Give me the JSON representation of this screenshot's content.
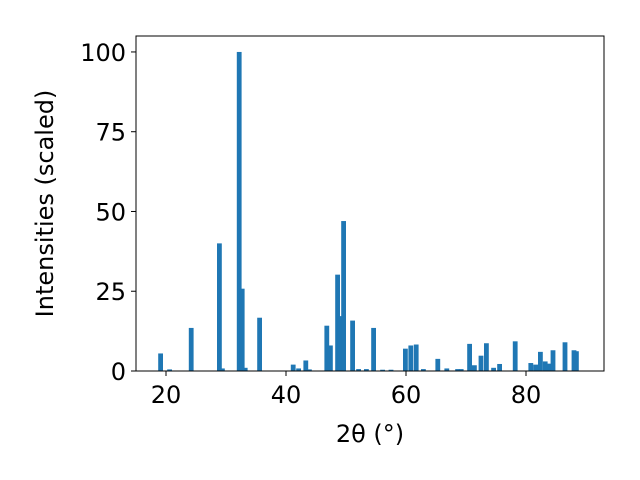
{
  "chart_data": {
    "type": "bar",
    "title": "",
    "xlabel": "2θ (°)",
    "ylabel": "Intensities (scaled)",
    "xlim": [
      15,
      93
    ],
    "ylim": [
      0,
      105
    ],
    "xticks": [
      20,
      40,
      60,
      80
    ],
    "yticks": [
      0,
      25,
      50,
      75,
      100
    ],
    "grid": false,
    "bar_color": "#1f77b4",
    "bar_width": 0.8,
    "x": [
      19.1,
      20.6,
      24.2,
      28.9,
      29.4,
      32.2,
      32.7,
      33.2,
      35.6,
      41.2,
      42.1,
      43.3,
      43.9,
      46.8,
      47.4,
      48.6,
      49.0,
      49.6,
      51.1,
      52.1,
      53.4,
      54.6,
      56.1,
      57.5,
      59.9,
      60.8,
      61.7,
      62.9,
      65.3,
      66.8,
      68.6,
      69.2,
      70.6,
      71.4,
      72.5,
      73.4,
      74.6,
      75.6,
      78.2,
      80.8,
      81.6,
      82.4,
      83.2,
      83.9,
      84.5,
      86.5,
      88.0,
      88.4
    ],
    "values": [
      5.5,
      0.5,
      13.5,
      40,
      0.8,
      100,
      25.8,
      1.0,
      16.7,
      2.0,
      0.8,
      3.3,
      0.5,
      14.2,
      8.0,
      30.2,
      17.2,
      47.0,
      15.8,
      0.6,
      0.6,
      13.5,
      0.4,
      0.4,
      7.0,
      8.0,
      8.3,
      0.6,
      3.8,
      0.8,
      0.6,
      0.6,
      8.5,
      1.8,
      4.8,
      8.7,
      1.0,
      2.2,
      9.3,
      2.5,
      2.0,
      6.0,
      3.0,
      2.3,
      6.5,
      9.0,
      6.5,
      6.2
    ]
  }
}
